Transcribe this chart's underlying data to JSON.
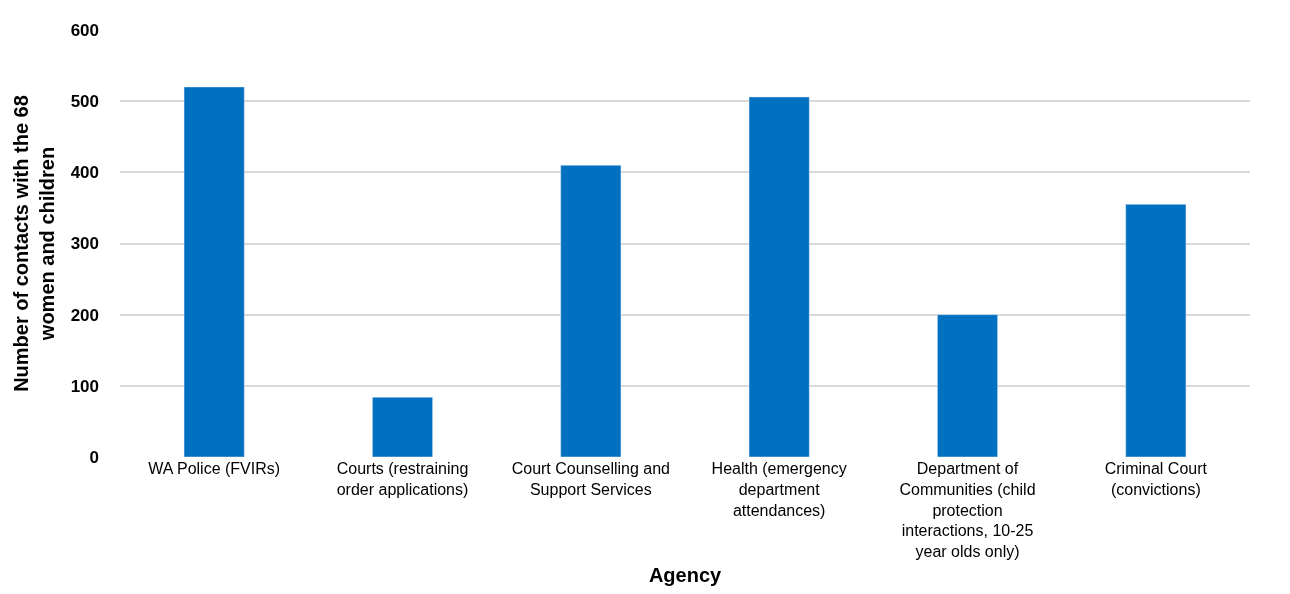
{
  "chart_data": {
    "type": "bar",
    "xlabel": "Agency",
    "ylabel": "Number of contacts with the 68 women and children",
    "categories": [
      "WA Police (FVIRs)",
      "Courts (restraining order applications)",
      "Court Counselling and Support Services",
      "Health (emergency department attendances)",
      "Department of Communities (child protection interactions, 10-25 year olds only)",
      "Criminal Court (convictions)"
    ],
    "values": [
      520,
      84,
      410,
      506,
      200,
      355
    ],
    "color": "#0070c0",
    "ylim": [
      0,
      600
    ],
    "yticks": [
      0,
      100,
      200,
      300,
      400,
      500,
      600
    ],
    "grid": "y"
  }
}
